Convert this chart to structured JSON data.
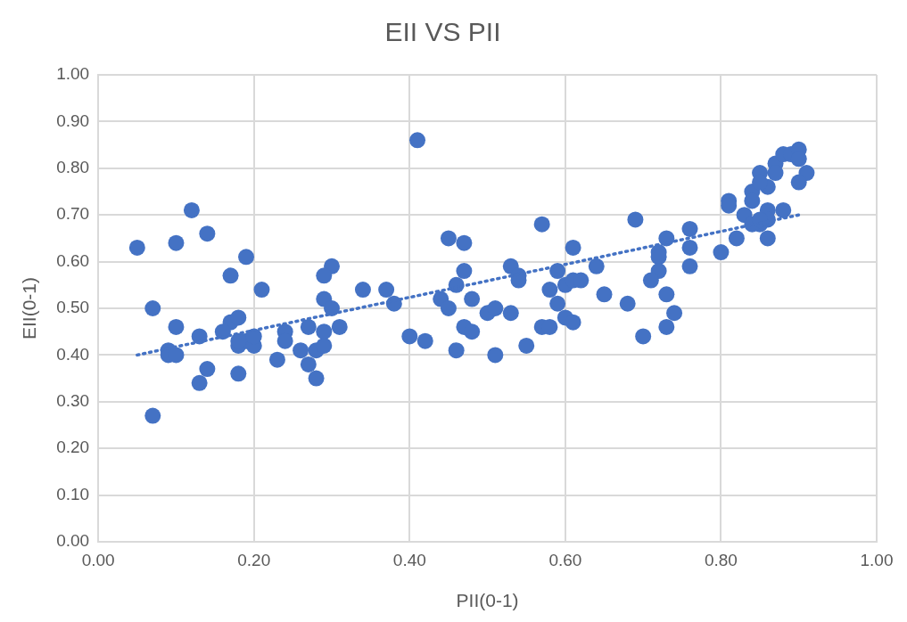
{
  "chart_data": {
    "type": "scatter",
    "title": "EII VS PII",
    "xlabel": "PII(0-1)",
    "ylabel": "EII(0-1)",
    "xlim": [
      0,
      1
    ],
    "ylim": [
      0,
      1
    ],
    "xticks": [
      {
        "value": 0,
        "label": "0.00"
      },
      {
        "value": 0.2,
        "label": "0.20"
      },
      {
        "value": 0.4,
        "label": "0.40"
      },
      {
        "value": 0.6,
        "label": "0.60"
      },
      {
        "value": 0.8,
        "label": "0.80"
      },
      {
        "value": 1,
        "label": "1.00"
      }
    ],
    "yticks": [
      {
        "value": 0,
        "label": "0.00"
      },
      {
        "value": 0.1,
        "label": "0.10"
      },
      {
        "value": 0.2,
        "label": "0.20"
      },
      {
        "value": 0.3,
        "label": "0.30"
      },
      {
        "value": 0.4,
        "label": "0.40"
      },
      {
        "value": 0.5,
        "label": "0.50"
      },
      {
        "value": 0.6,
        "label": "0.60"
      },
      {
        "value": 0.7,
        "label": "0.70"
      },
      {
        "value": 0.8,
        "label": "0.80"
      },
      {
        "value": 0.9,
        "label": "0.90"
      },
      {
        "value": 1,
        "label": "1.00"
      }
    ],
    "grid": true,
    "legend": false,
    "marker": "circle",
    "series": [
      {
        "color": "#4472c4",
        "x": [
          0.05,
          0.12,
          0.1,
          0.14,
          0.19,
          0.17,
          0.21,
          0.07,
          0.1,
          0.13,
          0.17,
          0.18,
          0.16,
          0.09,
          0.09,
          0.1,
          0.18,
          0.19,
          0.2,
          0.2,
          0.18,
          0.14,
          0.13,
          0.18,
          0.07,
          0.23,
          0.41,
          0.45,
          0.47,
          0.47,
          0.46,
          0.48,
          0.44,
          0.45,
          0.47,
          0.48,
          0.46,
          0.4,
          0.42,
          0.34,
          0.37,
          0.38,
          0.3,
          0.29,
          0.29,
          0.3,
          0.31,
          0.27,
          0.29,
          0.24,
          0.24,
          0.26,
          0.28,
          0.29,
          0.27,
          0.28,
          0.57,
          0.69,
          0.73,
          0.72,
          0.72,
          0.61,
          0.53,
          0.54,
          0.54,
          0.59,
          0.58,
          0.59,
          0.6,
          0.61,
          0.62,
          0.64,
          0.65,
          0.68,
          0.72,
          0.71,
          0.73,
          0.5,
          0.51,
          0.53,
          0.51,
          0.55,
          0.57,
          0.58,
          0.6,
          0.61,
          0.7,
          0.73,
          0.74,
          0.76,
          0.76,
          0.76,
          0.8,
          0.82,
          0.81,
          0.81,
          0.83,
          0.84,
          0.84,
          0.85,
          0.86,
          0.85,
          0.87,
          0.87,
          0.88,
          0.89,
          0.9,
          0.9,
          0.91,
          0.9,
          0.88,
          0.86,
          0.86,
          0.85,
          0.84,
          0.86,
          0.85
        ],
        "values": [
          0.63,
          0.71,
          0.64,
          0.66,
          0.61,
          0.57,
          0.54,
          0.5,
          0.46,
          0.44,
          0.47,
          0.48,
          0.45,
          0.41,
          0.4,
          0.4,
          0.42,
          0.43,
          0.42,
          0.44,
          0.43,
          0.37,
          0.34,
          0.36,
          0.27,
          0.39,
          0.86,
          0.65,
          0.64,
          0.58,
          0.55,
          0.52,
          0.52,
          0.5,
          0.46,
          0.45,
          0.41,
          0.44,
          0.43,
          0.54,
          0.54,
          0.51,
          0.59,
          0.57,
          0.52,
          0.5,
          0.46,
          0.46,
          0.45,
          0.45,
          0.43,
          0.41,
          0.41,
          0.42,
          0.38,
          0.35,
          0.68,
          0.69,
          0.65,
          0.62,
          0.61,
          0.63,
          0.59,
          0.57,
          0.56,
          0.58,
          0.54,
          0.51,
          0.55,
          0.56,
          0.56,
          0.59,
          0.53,
          0.51,
          0.58,
          0.56,
          0.53,
          0.49,
          0.5,
          0.49,
          0.4,
          0.42,
          0.46,
          0.46,
          0.48,
          0.47,
          0.44,
          0.46,
          0.49,
          0.67,
          0.63,
          0.59,
          0.62,
          0.65,
          0.73,
          0.72,
          0.7,
          0.75,
          0.73,
          0.79,
          0.76,
          0.77,
          0.81,
          0.79,
          0.83,
          0.83,
          0.84,
          0.82,
          0.79,
          0.77,
          0.71,
          0.71,
          0.69,
          0.68,
          0.68,
          0.65,
          0.69
        ]
      },
      {
        "type": "line",
        "color": "#4472c4",
        "line_style": "dotted",
        "marker": "none",
        "x": [
          0.05,
          0.9
        ],
        "values": [
          0.4,
          0.7
        ]
      }
    ]
  }
}
